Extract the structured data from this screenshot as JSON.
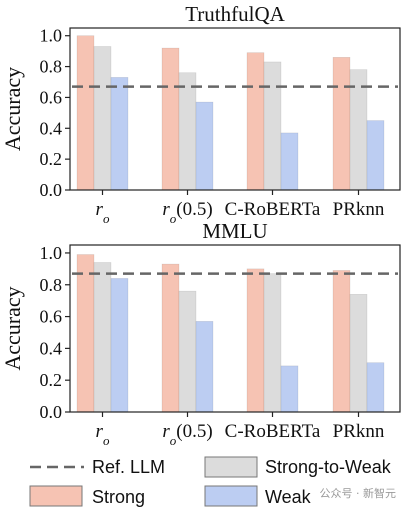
{
  "chart_data": [
    {
      "type": "bar",
      "title": "TruthfulQA",
      "ylabel": "Accuracy",
      "xlabel": "",
      "ylim": [
        0,
        1.05
      ],
      "yticks": [
        "0.0",
        "0.2",
        "0.4",
        "0.6",
        "0.8",
        "1.0"
      ],
      "categories": [
        "r_o",
        "r_o(0.5)",
        "C-RoBERTa",
        "PRknn"
      ],
      "series": [
        {
          "name": "Strong",
          "color": "#f6c3b3",
          "values": [
            1.0,
            0.92,
            0.89,
            0.86
          ]
        },
        {
          "name": "Strong-to-Weak",
          "color": "#dcdcdc",
          "values": [
            0.93,
            0.76,
            0.83,
            0.78
          ]
        },
        {
          "name": "Weak",
          "color": "#bccdf2",
          "values": [
            0.73,
            0.57,
            0.37,
            0.45
          ]
        }
      ],
      "reference": {
        "name": "Ref. LLM",
        "value": 0.67
      },
      "grid": false
    },
    {
      "type": "bar",
      "title": "MMLU",
      "ylabel": "Accuracy",
      "xlabel": "",
      "ylim": [
        0,
        1.05
      ],
      "yticks": [
        "0.0",
        "0.2",
        "0.4",
        "0.6",
        "0.8",
        "1.0"
      ],
      "categories": [
        "r_o",
        "r_o(0.5)",
        "C-RoBERTa",
        "PRknn"
      ],
      "series": [
        {
          "name": "Strong",
          "color": "#f6c3b3",
          "values": [
            0.99,
            0.93,
            0.9,
            0.89
          ]
        },
        {
          "name": "Strong-to-Weak",
          "color": "#dcdcdc",
          "values": [
            0.94,
            0.76,
            0.87,
            0.74
          ]
        },
        {
          "name": "Weak",
          "color": "#bccdf2",
          "values": [
            0.84,
            0.57,
            0.29,
            0.31
          ]
        }
      ],
      "reference": {
        "name": "Ref. LLM",
        "value": 0.87
      },
      "grid": false
    }
  ],
  "legend": {
    "placement": "bottom",
    "items": [
      {
        "label": "Ref. LLM",
        "kind": "dashed-line"
      },
      {
        "label": "Strong-to-Weak",
        "kind": "box",
        "color": "#dcdcdc"
      },
      {
        "label": "Strong",
        "kind": "box",
        "color": "#f6c3b3"
      },
      {
        "label": "Weak",
        "kind": "box",
        "color": "#bccdf2"
      }
    ]
  },
  "watermark": "公众号 · 新智元"
}
